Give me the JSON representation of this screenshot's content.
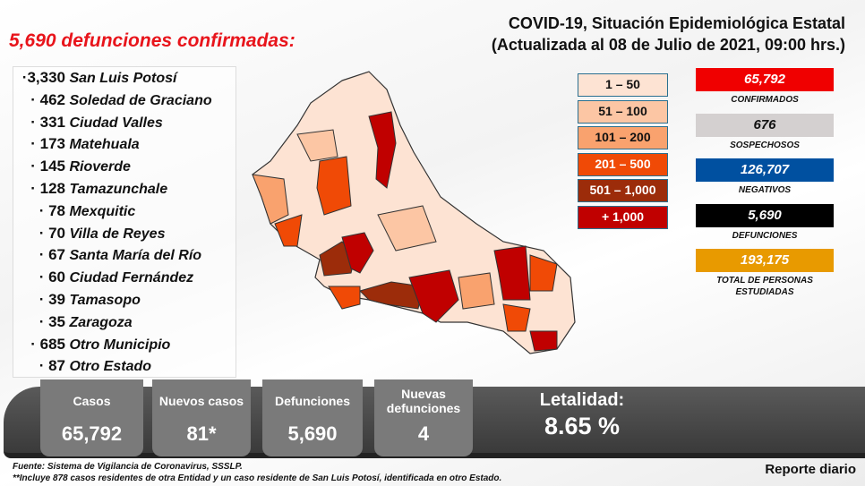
{
  "title": "5,690 defunciones confirmadas:",
  "header": {
    "line1": "COVID-19, Situación Epidemiológica Estatal",
    "line2": "(Actualizada al 08 de Julio de 2021, 09:00 hrs.)"
  },
  "municipios": [
    {
      "n": "·3,330",
      "name": "San Luis Potosí"
    },
    {
      "n": "· 462",
      "name": "Soledad de Graciano"
    },
    {
      "n": "· 331",
      "name": "Ciudad Valles"
    },
    {
      "n": "· 173",
      "name": "Matehuala"
    },
    {
      "n": "· 145",
      "name": "Rioverde"
    },
    {
      "n": "· 128",
      "name": "Tamazunchale"
    },
    {
      "n": "· 78",
      "name": "Mexquitic"
    },
    {
      "n": "· 70",
      "name": "Villa de Reyes"
    },
    {
      "n": "· 67",
      "name": "Santa María del Río"
    },
    {
      "n": "· 60",
      "name": "Ciudad Fernández"
    },
    {
      "n": "· 39",
      "name": "Tamasopo"
    },
    {
      "n": "· 35",
      "name": "Zaragoza"
    },
    {
      "n": "· 685",
      "name": "Otro Municipio"
    },
    {
      "n": "· 87",
      "name": "Otro Estado"
    }
  ],
  "legend": [
    {
      "label": "1 – 50",
      "color": "#fde3d3",
      "text": "#111"
    },
    {
      "label": "51 – 100",
      "color": "#fcc6a4",
      "text": "#111"
    },
    {
      "label": "101 – 200",
      "color": "#f9a26e",
      "text": "#111"
    },
    {
      "label": "201 – 500",
      "color": "#f04a06",
      "text": "#fff"
    },
    {
      "label": "501 – 1,000",
      "color": "#9c2c0a",
      "text": "#fff"
    },
    {
      "label": "+ 1,000",
      "color": "#c00000",
      "text": "#fff"
    }
  ],
  "stats": [
    {
      "value": "65,792",
      "label": "CONFIRMADOS",
      "color": "#f00000",
      "text": "#fff"
    },
    {
      "value": "676",
      "label": "SOSPECHOSOS",
      "color": "#d4d0d0",
      "text": "#111"
    },
    {
      "value": "126,707",
      "label": "NEGATIVOS",
      "color": "#0050a0",
      "text": "#fff"
    },
    {
      "value": "5,690",
      "label": "DEFUNCIONES",
      "color": "#000000",
      "text": "#fff"
    },
    {
      "value": "193,175",
      "label": "TOTAL DE PERSONAS ESTUDIADAS",
      "color": "#e89a00",
      "text": "#fff"
    }
  ],
  "summary": {
    "casos_label": "Casos",
    "casos": "65,792",
    "nuevos_label": "Nuevos casos",
    "nuevos": "81*",
    "def_label": "Defunciones",
    "def": "5,690",
    "nuevas_def_label": "Nuevas defunciones",
    "nuevas_def": "4",
    "letalidad_label": "Letalidad:",
    "letalidad": "8.65 %"
  },
  "footer": {
    "fuente": "Fuente: Sistema de Vigilancia de Coronavirus, SSSLP.",
    "nota": "**Incluye 878 casos residentes de otra Entidad y un caso residente de San Luis Potosí, identificada en otro Estado.",
    "reporte": "Reporte diario"
  }
}
